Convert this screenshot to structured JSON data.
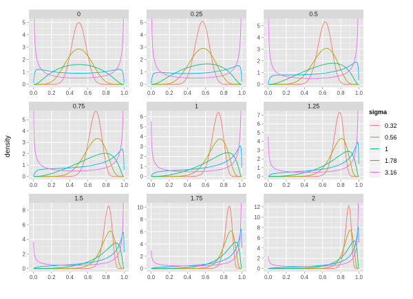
{
  "chart_data": {
    "type": "line",
    "ylabel": "density",
    "legend": {
      "title": "sigma",
      "position": "right"
    },
    "series": [
      {
        "name": "0.32",
        "color": "#F8766D",
        "sigma": 0.32
      },
      {
        "name": "0.56",
        "color": "#A3A500",
        "sigma": 0.56
      },
      {
        "name": "1",
        "color": "#00BF7D",
        "sigma": 1.0
      },
      {
        "name": "1.78",
        "color": "#00B0F6",
        "sigma": 1.78
      },
      {
        "name": "3.16",
        "color": "#E76BF3",
        "sigma": 3.16
      }
    ],
    "x_ticks": [
      "0.0",
      "0.2",
      "0.4",
      "0.6",
      "0.8",
      "1.0"
    ],
    "x_tick_values": [
      0,
      0.2,
      0.4,
      0.6,
      0.8,
      1.0
    ],
    "xlim": [
      0,
      1
    ],
    "grid": true,
    "distribution": "logit-normal",
    "panels": [
      {
        "label": "0",
        "mu": 0,
        "ylim": [
          0,
          5.3
        ],
        "y_ticks": [
          "0",
          "1",
          "2",
          "3",
          "4",
          "5"
        ],
        "y_tick_values": [
          0,
          1,
          2,
          3,
          4,
          5
        ]
      },
      {
        "label": "0.25",
        "mu": 0.25,
        "ylim": [
          0,
          5.3
        ],
        "y_ticks": [
          "0",
          "1",
          "2",
          "3",
          "4",
          "5"
        ],
        "y_tick_values": [
          0,
          1,
          2,
          3,
          4,
          5
        ]
      },
      {
        "label": "0.5",
        "mu": 0.5,
        "ylim": [
          0,
          5.6
        ],
        "y_ticks": [
          "0",
          "1",
          "2",
          "3",
          "4",
          "5"
        ],
        "y_tick_values": [
          0,
          1,
          2,
          3,
          4,
          5
        ]
      },
      {
        "label": "0.75",
        "mu": 0.75,
        "ylim": [
          0,
          5.8
        ],
        "y_ticks": [
          "0",
          "1",
          "2",
          "3",
          "4",
          "5"
        ],
        "y_tick_values": [
          0,
          1,
          2,
          3,
          4,
          5
        ]
      },
      {
        "label": "1",
        "mu": 1.0,
        "ylim": [
          0,
          6.6
        ],
        "y_ticks": [
          "0",
          "1",
          "2",
          "3",
          "4",
          "5",
          "6"
        ],
        "y_tick_values": [
          0,
          1,
          2,
          3,
          4,
          5,
          6
        ]
      },
      {
        "label": "1.25",
        "mu": 1.25,
        "ylim": [
          0,
          7.5
        ],
        "y_ticks": [
          "0",
          "1",
          "2",
          "3",
          "4",
          "5",
          "6",
          "7"
        ],
        "y_tick_values": [
          0,
          1,
          2,
          3,
          4,
          5,
          6,
          7
        ]
      },
      {
        "label": "1.5",
        "mu": 1.5,
        "ylim": [
          0,
          9.0
        ],
        "y_ticks": [
          "0",
          "2",
          "4",
          "6",
          "8"
        ],
        "y_tick_values": [
          0,
          2,
          4,
          6,
          8
        ]
      },
      {
        "label": "1.75",
        "mu": 1.75,
        "ylim": [
          0,
          10.7
        ],
        "y_ticks": [
          "0",
          "2",
          "4",
          "6",
          "8",
          "10"
        ],
        "y_tick_values": [
          0,
          2,
          4,
          6,
          8,
          10
        ]
      },
      {
        "label": "2",
        "mu": 2.0,
        "ylim": [
          0,
          12.8
        ],
        "y_ticks": [
          "0",
          "2",
          "4",
          "6",
          "8",
          "10",
          "12"
        ],
        "y_tick_values": [
          0,
          2,
          4,
          6,
          8,
          10,
          12
        ]
      }
    ]
  }
}
